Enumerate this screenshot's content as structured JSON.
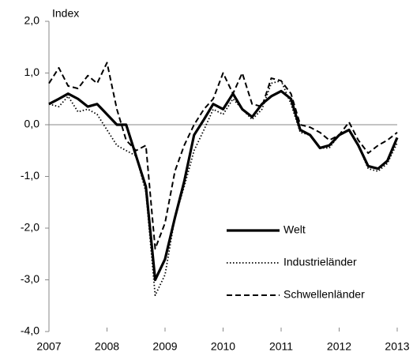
{
  "chart_data": {
    "type": "line",
    "ylabel": "Index",
    "x": [
      2007,
      2007.17,
      2007.33,
      2007.5,
      2007.67,
      2007.83,
      2008,
      2008.17,
      2008.33,
      2008.5,
      2008.67,
      2008.83,
      2009,
      2009.17,
      2009.33,
      2009.5,
      2009.67,
      2009.83,
      2010,
      2010.17,
      2010.33,
      2010.5,
      2010.67,
      2010.83,
      2011,
      2011.17,
      2011.33,
      2011.5,
      2011.67,
      2011.83,
      2012,
      2012.17,
      2012.33,
      2012.5,
      2012.67,
      2012.83,
      2013
    ],
    "series": [
      {
        "name": "Welt",
        "color": "#000000",
        "dash": "solid",
        "values": [
          0.4,
          0.5,
          0.6,
          0.5,
          0.35,
          0.4,
          0.2,
          0.0,
          0.0,
          -0.6,
          -1.2,
          -3.0,
          -2.6,
          -1.8,
          -1.1,
          -0.2,
          0.1,
          0.4,
          0.3,
          0.6,
          0.3,
          0.15,
          0.4,
          0.55,
          0.65,
          0.5,
          -0.1,
          -0.2,
          -0.45,
          -0.4,
          -0.2,
          -0.1,
          -0.4,
          -0.8,
          -0.85,
          -0.7,
          -0.25
        ]
      },
      {
        "name": "Industrieländer",
        "color": "#000000",
        "dash": "dotted",
        "values": [
          0.4,
          0.35,
          0.55,
          0.25,
          0.3,
          0.2,
          -0.1,
          -0.4,
          -0.5,
          -0.6,
          -1.3,
          -3.3,
          -2.9,
          -1.8,
          -1.2,
          -0.5,
          -0.1,
          0.3,
          0.2,
          0.5,
          0.3,
          0.1,
          0.3,
          0.8,
          0.85,
          0.4,
          -0.15,
          -0.2,
          -0.45,
          -0.45,
          -0.2,
          -0.1,
          -0.4,
          -0.85,
          -0.9,
          -0.75,
          -0.35
        ]
      },
      {
        "name": "Schwellenländer",
        "color": "#000000",
        "dash": "dashed",
        "values": [
          0.8,
          1.1,
          0.75,
          0.7,
          0.95,
          0.8,
          1.2,
          0.3,
          -0.3,
          -0.5,
          -0.4,
          -2.4,
          -1.9,
          -0.9,
          -0.4,
          0.0,
          0.3,
          0.5,
          1.0,
          0.6,
          1.0,
          0.4,
          0.35,
          0.9,
          0.85,
          0.6,
          0.0,
          -0.05,
          -0.15,
          -0.3,
          -0.2,
          0.05,
          -0.3,
          -0.55,
          -0.4,
          -0.3,
          -0.15
        ]
      }
    ],
    "xlim": [
      2007,
      2013
    ],
    "xticks": [
      2007,
      2008,
      2009,
      2010,
      2011,
      2012,
      2013
    ],
    "ylim": [
      -4,
      2
    ],
    "yticks": [
      {
        "value": -4,
        "label": "-4,0"
      },
      {
        "value": -3,
        "label": "-3,0"
      },
      {
        "value": -2,
        "label": "-2,0"
      },
      {
        "value": -1,
        "label": "-1,0"
      },
      {
        "value": 0,
        "label": "0,0"
      },
      {
        "value": 1,
        "label": "1,0"
      },
      {
        "value": 2,
        "label": "2,0"
      }
    ]
  }
}
